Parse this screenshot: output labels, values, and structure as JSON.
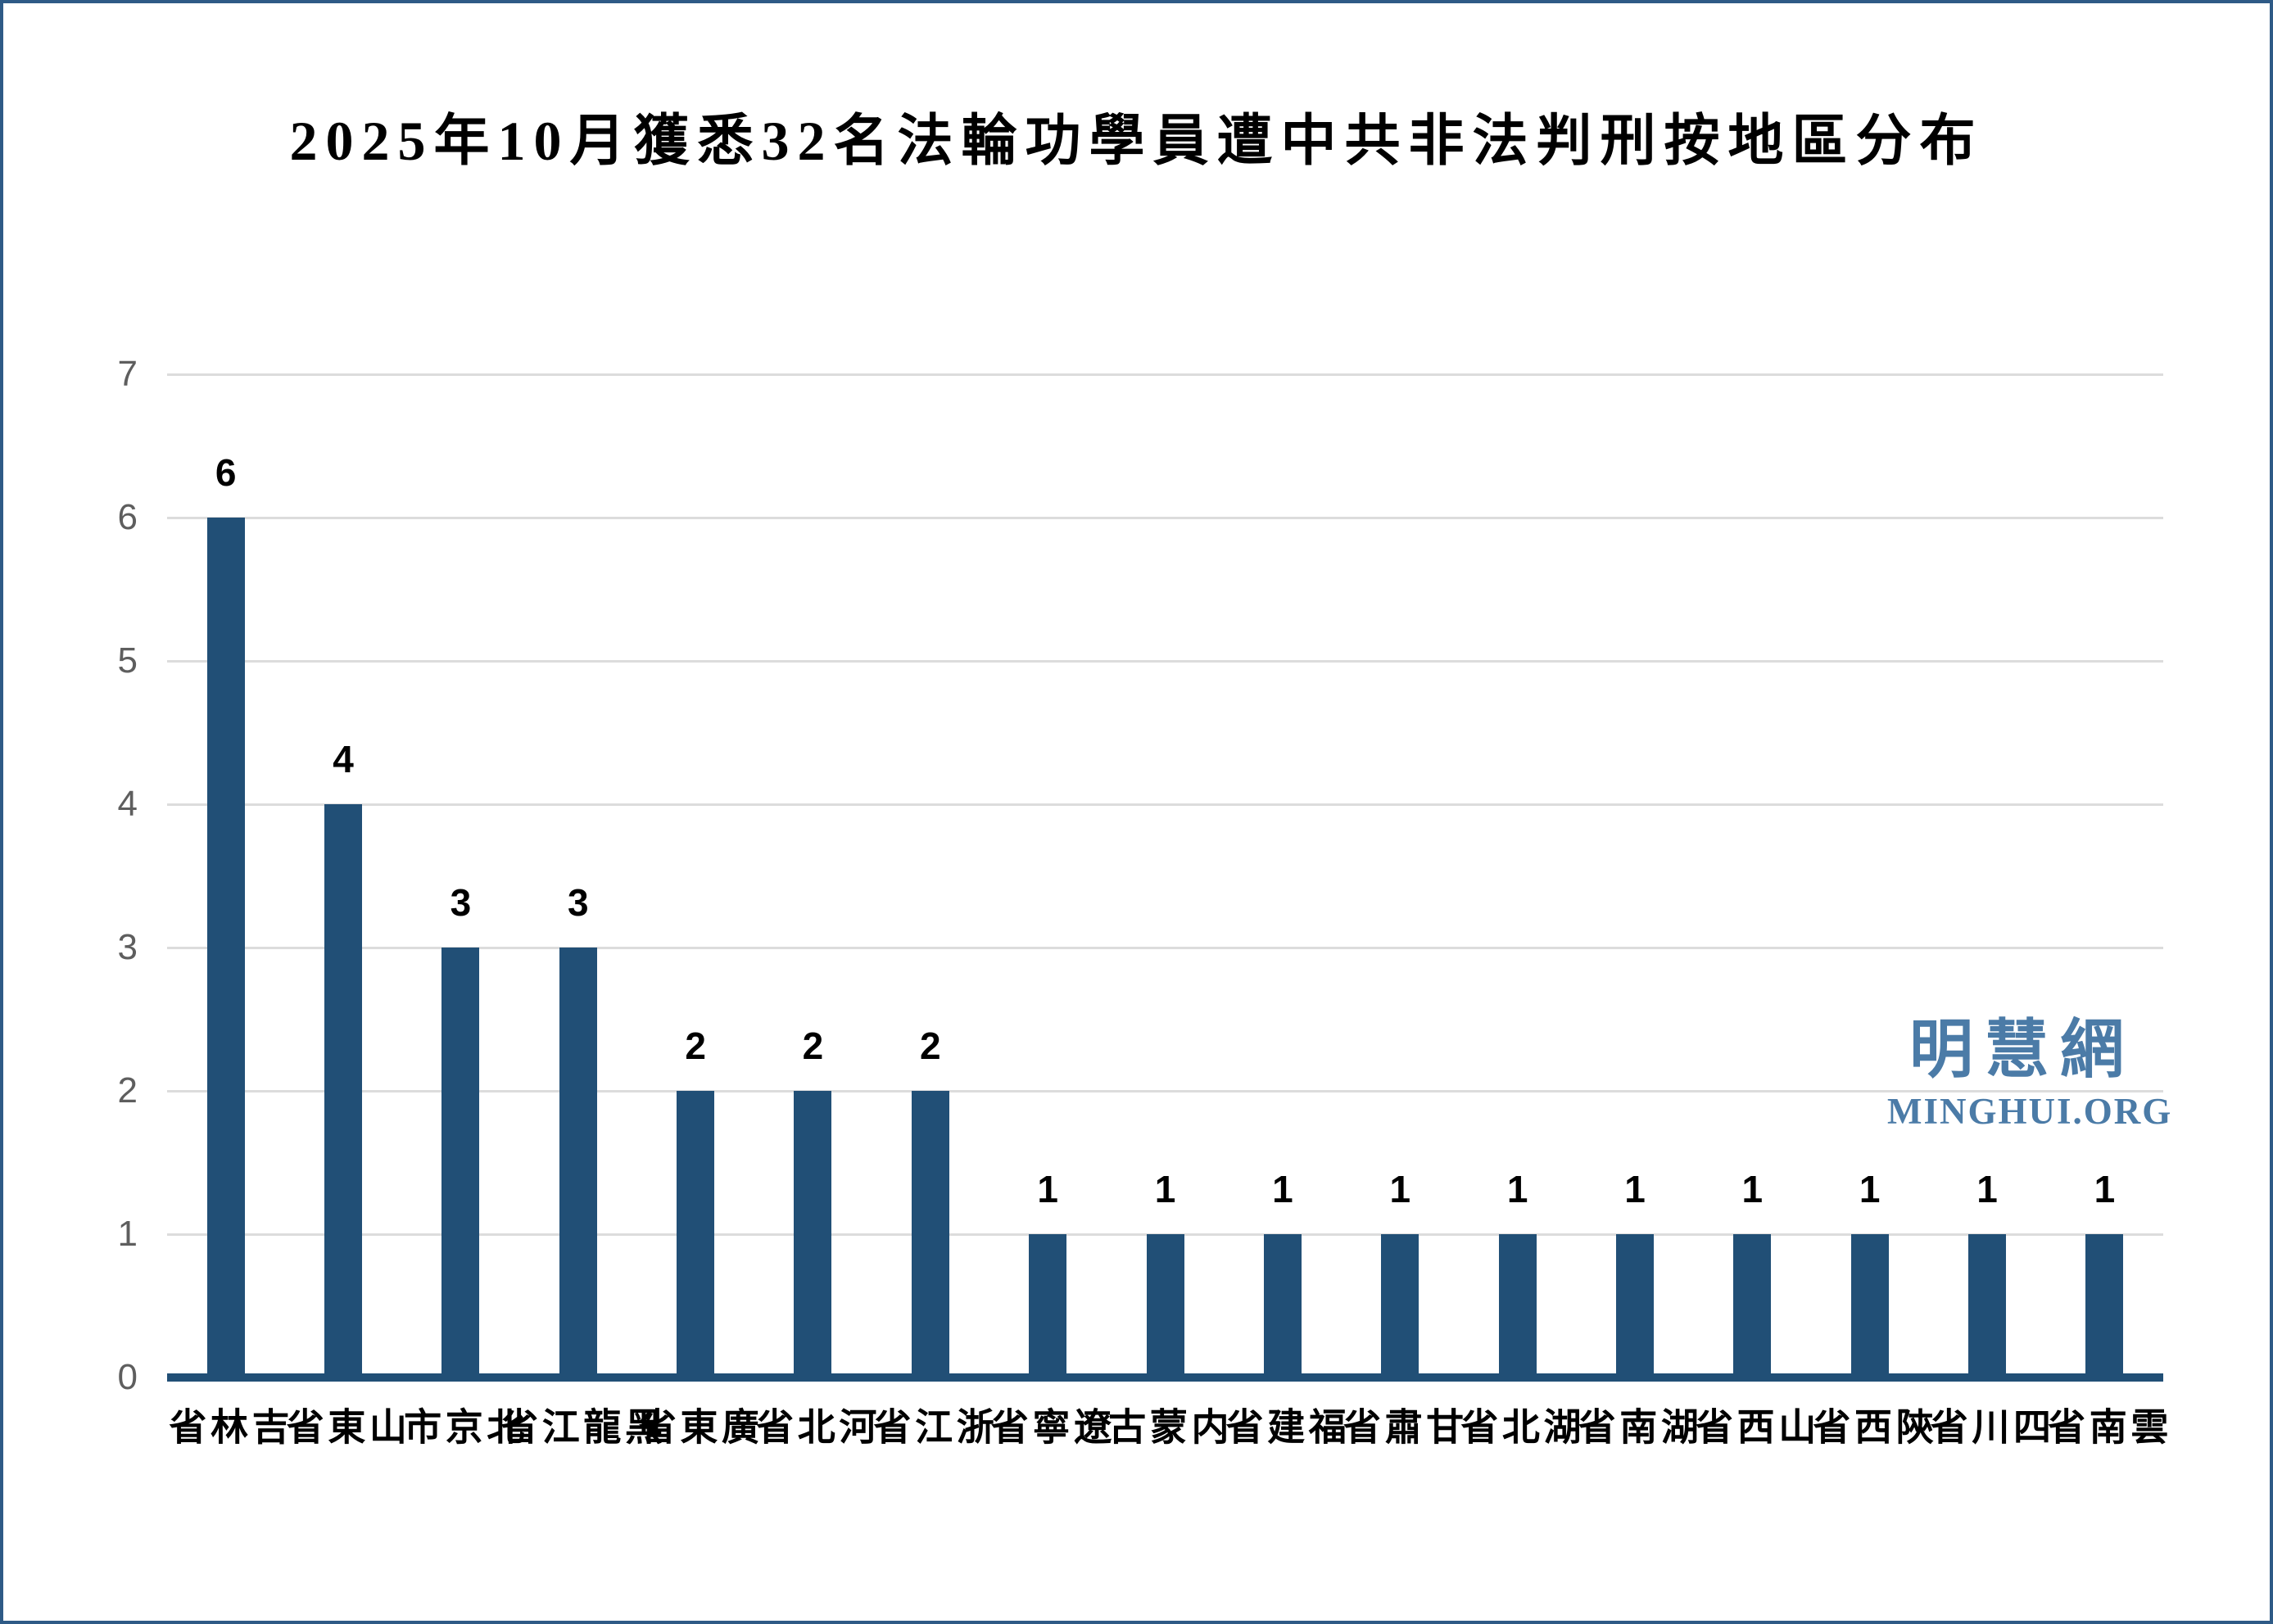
{
  "page": {
    "background_color": "#FFFFFF",
    "border_color": "#2E5A86"
  },
  "title": "2025年10月獲悉32名法輪功學員遭中共非法判刑按地區分布",
  "watermark": {
    "cjk": "明慧網",
    "latin": "MINGHUI.ORG",
    "color": "#4B7BA7"
  },
  "colors": {
    "bar": "#214F76",
    "axis_line": "#214F76",
    "gridline": "#DCDCDC",
    "y_tick_text": "#5E5E5E",
    "data_label_text": "#000000",
    "category_text": "#000000",
    "title_text": "#000000"
  },
  "chart_data": {
    "type": "bar",
    "title": "2025年10月獲悉32名法輪功學員遭中共非法判刑按地區分布",
    "categories": [
      "吉林省",
      "山東省",
      "北京市",
      "黑龍江省",
      "廣東省",
      "河北省",
      "浙江省",
      "遼寧省",
      "内蒙古",
      "福建省",
      "甘肅省",
      "湖北省",
      "湖南省",
      "山西省",
      "陝西省",
      "四川省",
      "雲南省"
    ],
    "values": [
      6,
      4,
      3,
      3,
      2,
      2,
      2,
      1,
      1,
      1,
      1,
      1,
      1,
      1,
      1,
      1,
      1
    ],
    "xlabel": "",
    "ylabel": "",
    "ylim": [
      0,
      7
    ],
    "yticks": [
      0,
      1,
      2,
      3,
      4,
      5,
      6,
      7
    ],
    "grid": true,
    "legend": false,
    "data_labels": true,
    "bar_color": "#214F76",
    "total": 32
  }
}
